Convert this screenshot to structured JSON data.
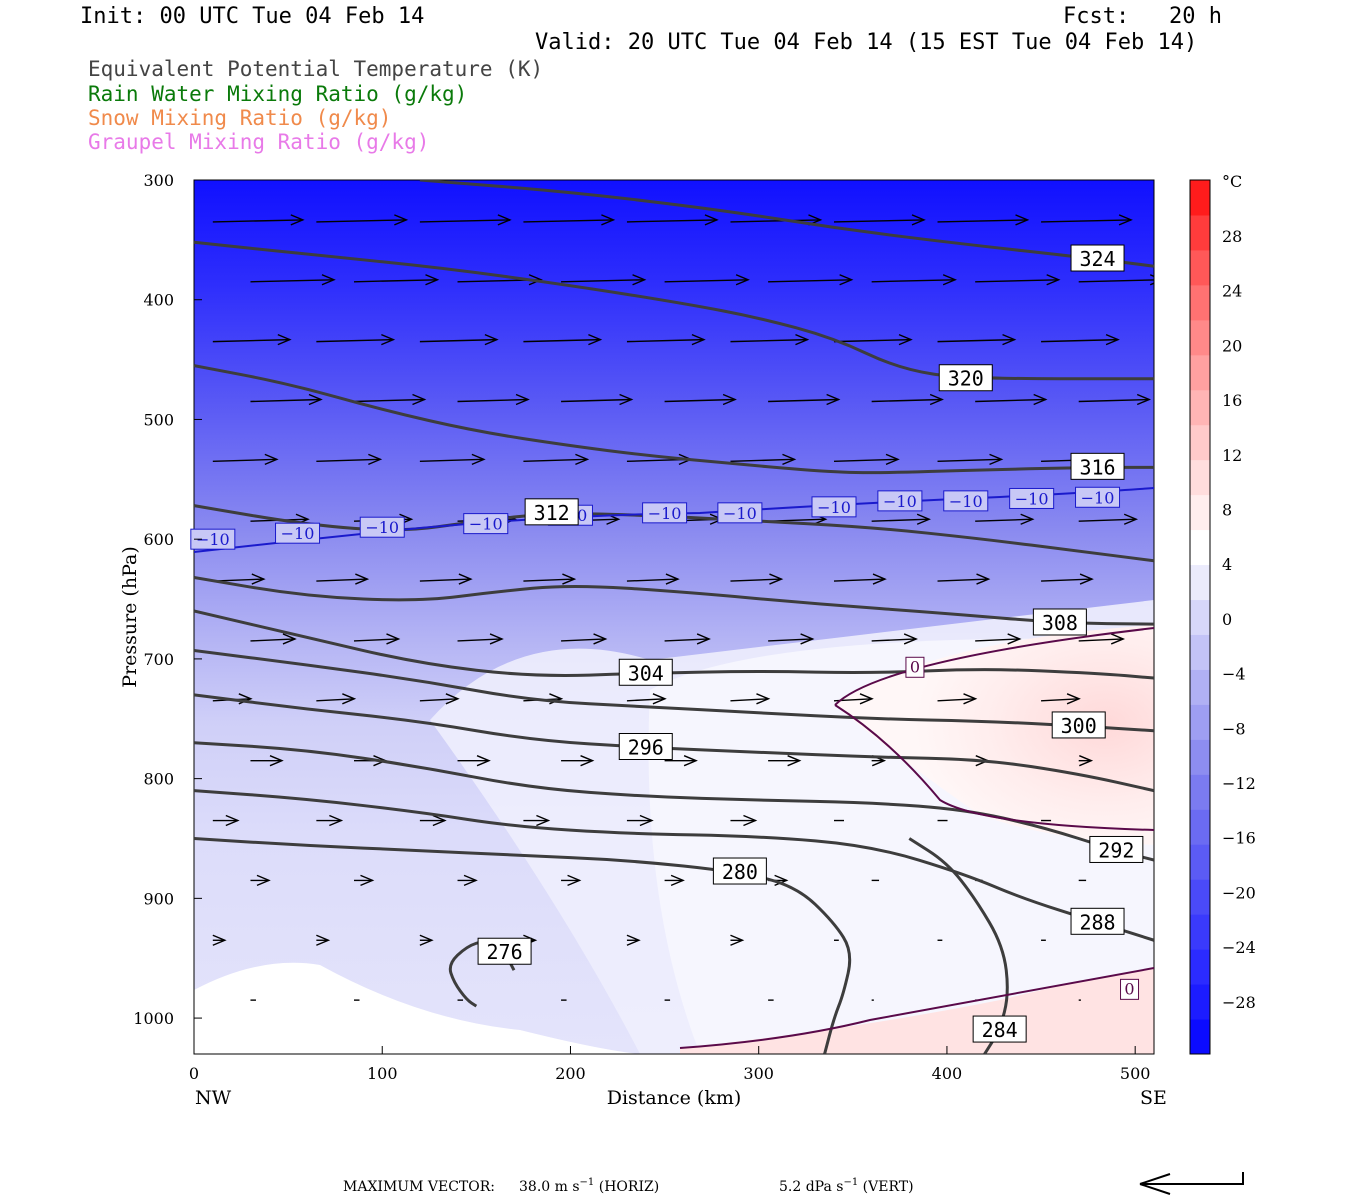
{
  "header": {
    "init": "Init: 00 UTC Tue 04 Feb 14",
    "fcst": "Fcst:   20 h",
    "valid": "Valid: 20 UTC Tue 04 Feb 14 (15 EST Tue 04 Feb 14)"
  },
  "legend": [
    {
      "label": "Equivalent Potential Temperature (K)",
      "color": "#444444"
    },
    {
      "label": "Rain Water Mixing Ratio (g/kg)",
      "color": "#0a7a0a"
    },
    {
      "label": "Snow Mixing Ratio (g/kg)",
      "color": "#f08a4b"
    },
    {
      "label": "Graupel Mixing Ratio (g/kg)",
      "color": "#e87ae8"
    }
  ],
  "chart_data": {
    "type": "contour cross-section",
    "xlabel": "Distance (km)",
    "ylabel": "Pressure (hPa)",
    "x_ticks": [
      "0",
      "100",
      "200",
      "300",
      "400",
      "500"
    ],
    "x_end_labels": {
      "left": "NW",
      "right": "SE"
    },
    "y_ticks": [
      "300",
      "400",
      "500",
      "600",
      "700",
      "800",
      "900",
      "1000"
    ],
    "xlim": [
      0,
      510
    ],
    "ylim": [
      1030,
      300
    ],
    "colorbar": {
      "unit": "°C",
      "ticks": [
        "28",
        "24",
        "20",
        "16",
        "12",
        "8",
        "4",
        "0",
        "−4",
        "−8",
        "−12",
        "−16",
        "−20",
        "−24",
        "−28"
      ],
      "colors": [
        "#0b0bff",
        "#1c1cff",
        "#2b2bff",
        "#3a3afc",
        "#4a4af8",
        "#5b5bf5",
        "#6b6bf2",
        "#7b7bf0",
        "#8d8df0",
        "#9e9ef2",
        "#b0b0f4",
        "#c3c3f7",
        "#d7d7fa",
        "#ebebfc",
        "#ffffff",
        "#ffeeee",
        "#ffdddd",
        "#ffcaca",
        "#ffb5b5",
        "#ffa0a0",
        "#ff8989",
        "#ff7272",
        "#ff5858",
        "#ff3c3c",
        "#ff1c1c"
      ]
    },
    "theta_e_isolines": [
      {
        "label": "324",
        "points": [
          [
            120,
            300
          ],
          [
            200,
            310
          ],
          [
            280,
            325
          ],
          [
            340,
            340
          ],
          [
            400,
            352
          ],
          [
            480,
            366
          ],
          [
            510,
            372
          ]
        ]
      },
      {
        "label": "320",
        "points": [
          [
            0,
            352
          ],
          [
            60,
            362
          ],
          [
            130,
            373
          ],
          [
            200,
            388
          ],
          [
            260,
            403
          ],
          [
            300,
            415
          ],
          [
            340,
            432
          ],
          [
            375,
            458
          ],
          [
            410,
            466
          ],
          [
            510,
            466
          ]
        ]
      },
      {
        "label": "316",
        "points": [
          [
            0,
            455
          ],
          [
            50,
            470
          ],
          [
            100,
            492
          ],
          [
            150,
            510
          ],
          [
            200,
            522
          ],
          [
            240,
            530
          ],
          [
            280,
            536
          ],
          [
            330,
            543
          ],
          [
            360,
            545
          ],
          [
            420,
            542
          ],
          [
            480,
            540
          ],
          [
            510,
            540
          ]
        ]
      },
      {
        "label": "312",
        "points": [
          [
            0,
            572
          ],
          [
            60,
            588
          ],
          [
            110,
            594
          ],
          [
            150,
            585
          ],
          [
            190,
            578
          ],
          [
            240,
            580
          ],
          [
            290,
            584
          ],
          [
            360,
            590
          ],
          [
            420,
            600
          ],
          [
            470,
            610
          ],
          [
            510,
            618
          ]
        ]
      },
      {
        "label": "308",
        "points": [
          [
            0,
            632
          ],
          [
            60,
            648
          ],
          [
            120,
            652
          ],
          [
            160,
            644
          ],
          [
            200,
            638
          ],
          [
            260,
            644
          ],
          [
            330,
            654
          ],
          [
            400,
            662
          ],
          [
            460,
            670
          ],
          [
            510,
            671
          ]
        ]
      },
      {
        "label": "304",
        "points": [
          [
            0,
            660
          ],
          [
            60,
            682
          ],
          [
            120,
            704
          ],
          [
            180,
            715
          ],
          [
            240,
            712
          ],
          [
            300,
            710
          ],
          [
            360,
            712
          ],
          [
            420,
            708
          ],
          [
            480,
            712
          ],
          [
            510,
            716
          ]
        ]
      },
      {
        "label": "300",
        "points": [
          [
            0,
            693
          ],
          [
            60,
            705
          ],
          [
            120,
            718
          ],
          [
            180,
            735
          ],
          [
            240,
            740
          ],
          [
            300,
            745
          ],
          [
            360,
            750
          ],
          [
            420,
            752
          ],
          [
            470,
            756
          ],
          [
            510,
            760
          ]
        ]
      },
      {
        "label": "296",
        "points": [
          [
            0,
            730
          ],
          [
            60,
            742
          ],
          [
            120,
            752
          ],
          [
            180,
            768
          ],
          [
            240,
            774
          ],
          [
            300,
            778
          ],
          [
            360,
            782
          ],
          [
            420,
            784
          ],
          [
            470,
            796
          ],
          [
            510,
            810
          ]
        ]
      },
      {
        "label": "292",
        "points": [
          [
            0,
            770
          ],
          [
            60,
            776
          ],
          [
            120,
            790
          ],
          [
            180,
            808
          ],
          [
            240,
            815
          ],
          [
            300,
            818
          ],
          [
            360,
            820
          ],
          [
            410,
            826
          ],
          [
            450,
            840
          ],
          [
            490,
            860
          ],
          [
            510,
            868
          ]
        ]
      },
      {
        "label": "288",
        "points": [
          [
            0,
            810
          ],
          [
            60,
            817
          ],
          [
            120,
            828
          ],
          [
            170,
            840
          ],
          [
            230,
            846
          ],
          [
            300,
            848
          ],
          [
            360,
            856
          ],
          [
            410,
            880
          ],
          [
            440,
            900
          ],
          [
            480,
            920
          ],
          [
            510,
            935
          ]
        ]
      },
      {
        "label": "280",
        "points": [
          [
            0,
            850
          ],
          [
            60,
            856
          ],
          [
            120,
            860
          ],
          [
            170,
            864
          ],
          [
            230,
            868
          ],
          [
            290,
            878
          ],
          [
            320,
            890
          ],
          [
            340,
            920
          ],
          [
            350,
            945
          ],
          [
            345,
            980
          ],
          [
            340,
            1000
          ],
          [
            335,
            1030
          ]
        ]
      },
      {
        "label": "284",
        "points": [
          [
            380,
            850
          ],
          [
            400,
            870
          ],
          [
            415,
            900
          ],
          [
            430,
            940
          ],
          [
            433,
            980
          ],
          [
            428,
            1010
          ],
          [
            420,
            1030
          ]
        ]
      },
      {
        "label": "276",
        "points": [
          [
            170,
            960
          ],
          [
            165,
            945
          ],
          [
            155,
            935
          ],
          [
            145,
            940
          ],
          [
            135,
            955
          ],
          [
            138,
            970
          ],
          [
            145,
            985
          ],
          [
            150,
            990
          ]
        ]
      }
    ],
    "zero_isotherm_label": "0",
    "minus10_isotherm_label": "−10",
    "footer": {
      "max_vector": "MAXIMUM VECTOR:",
      "horiz_value": "38.0 m s",
      "horiz_unit_sup": "−1",
      "horiz_tag": "(HORIZ)",
      "vert_value": "5.2 dPa s",
      "vert_unit_sup": "−1",
      "vert_tag": "(VERT)"
    }
  }
}
